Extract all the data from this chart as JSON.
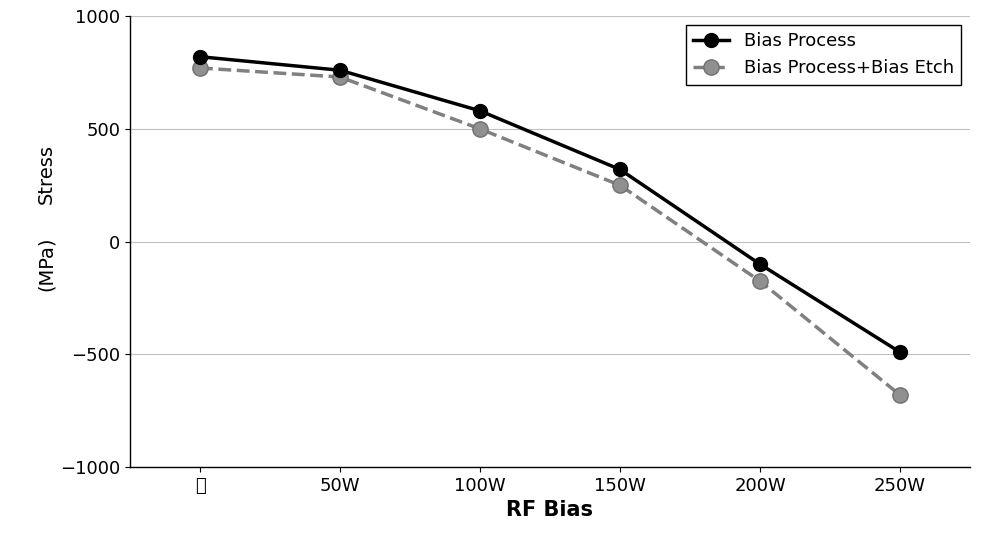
{
  "x_labels": [
    "无",
    "50W",
    "100W",
    "150W",
    "200W",
    "250W"
  ],
  "x_values": [
    0,
    1,
    2,
    3,
    4,
    5
  ],
  "series1": {
    "label": "Bias Process",
    "y_values": [
      820,
      760,
      580,
      320,
      -100,
      -490
    ],
    "color": "#000000",
    "linestyle": "solid",
    "linewidth": 2.5,
    "marker": "o",
    "markersize": 10,
    "markerfacecolor": "#000000",
    "markeredgecolor": "#000000"
  },
  "series2": {
    "label": "Bias Process+Bias Etch",
    "y_values": [
      770,
      730,
      500,
      250,
      -175,
      -680
    ],
    "color": "#808080",
    "linestyle": "dashed",
    "linewidth": 2.5,
    "marker": "o",
    "markersize": 11,
    "markerfacecolor": "#909090",
    "markeredgecolor": "#707070"
  },
  "xlabel": "RF Bias",
  "ylabel_line1": "Stress",
  "ylabel_line2": "(MPa)",
  "ylim": [
    -1000,
    1000
  ],
  "yticks": [
    -1000,
    -500,
    0,
    500,
    1000
  ],
  "grid_color": "#c0c0c0",
  "background_color": "#ffffff",
  "xlabel_fontsize": 15,
  "ylabel_fontsize": 14,
  "tick_fontsize": 13,
  "legend_fontsize": 13
}
